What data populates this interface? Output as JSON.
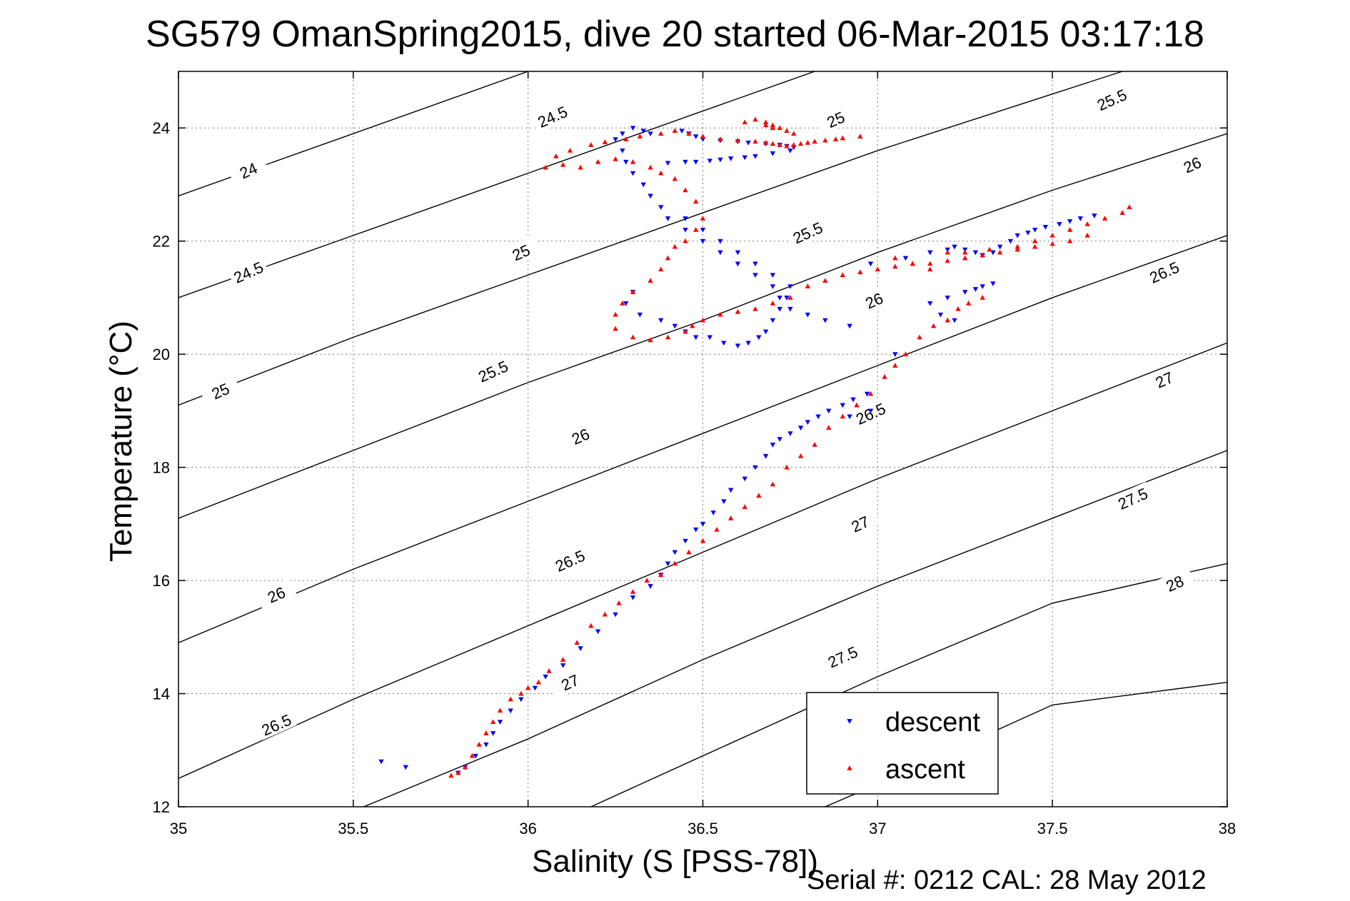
{
  "title": "SG579 OmanSpring2015, dive 20 started 06-Mar-2015 03:17:18",
  "footer": "Serial #: 0212  CAL: 28 May 2012",
  "chart_data": {
    "type": "scatter",
    "title": "SG579 OmanSpring2015, dive 20 started 06-Mar-2015 03:17:18",
    "xlabel": "Salinity (S [PSS-78])",
    "ylabel": "Temperature (°C)",
    "xlim": [
      35,
      38
    ],
    "ylim": [
      12,
      25
    ],
    "xticks": [
      35,
      35.5,
      36,
      36.5,
      37,
      37.5,
      38
    ],
    "xtick_labels": [
      "35",
      "35.5",
      "36",
      "36.5",
      "37",
      "37.5",
      "38"
    ],
    "yticks": [
      12,
      14,
      16,
      18,
      20,
      22,
      24
    ],
    "ytick_labels": [
      "12",
      "14",
      "16",
      "18",
      "20",
      "22",
      "24"
    ],
    "grid": true,
    "legend": "bottom-right",
    "density_contours": {
      "levels": [
        24,
        24.5,
        25,
        25.5,
        26,
        26.5,
        27,
        27.5,
        28
      ],
      "level_labels": [
        "24",
        "24.5",
        "25",
        "25.5",
        "26",
        "26.5",
        "27",
        "27.5",
        "28"
      ],
      "lines": [
        {
          "level": "24",
          "points": [
            [
              35,
              22.8
            ],
            [
              35.5,
              23.9
            ],
            [
              36,
              25.0
            ]
          ]
        },
        {
          "level": "24.5",
          "points": [
            [
              35,
              21.0
            ],
            [
              35.5,
              22.1
            ],
            [
              36,
              23.2
            ],
            [
              36.5,
              24.3
            ],
            [
              36.82,
              25.0
            ]
          ]
        },
        {
          "level": "25",
          "points": [
            [
              35,
              19.1
            ],
            [
              35.5,
              20.3
            ],
            [
              36,
              21.4
            ],
            [
              36.5,
              22.5
            ],
            [
              37,
              23.6
            ],
            [
              37.5,
              24.6
            ],
            [
              37.7,
              25.0
            ]
          ]
        },
        {
          "level": "25.5",
          "points": [
            [
              35,
              17.1
            ],
            [
              35.5,
              18.3
            ],
            [
              36,
              19.5
            ],
            [
              36.5,
              20.6
            ],
            [
              37,
              21.8
            ],
            [
              37.5,
              22.9
            ],
            [
              38,
              23.9
            ]
          ]
        },
        {
          "level": "26",
          "points": [
            [
              35,
              14.9
            ],
            [
              35.5,
              16.2
            ],
            [
              36,
              17.4
            ],
            [
              36.5,
              18.6
            ],
            [
              37,
              19.8
            ],
            [
              37.5,
              21.0
            ],
            [
              38,
              22.1
            ]
          ]
        },
        {
          "level": "26.5",
          "points": [
            [
              35,
              12.5
            ],
            [
              35.5,
              13.9
            ],
            [
              36,
              15.2
            ],
            [
              36.5,
              16.5
            ],
            [
              37,
              17.8
            ],
            [
              37.5,
              19.0
            ],
            [
              38,
              20.2
            ]
          ]
        },
        {
          "level": "27",
          "points": [
            [
              35.53,
              12.0
            ],
            [
              36,
              13.2
            ],
            [
              36.5,
              14.6
            ],
            [
              37,
              15.9
            ],
            [
              37.5,
              17.1
            ],
            [
              38,
              18.3
            ]
          ]
        },
        {
          "level": "27.5",
          "points": [
            [
              36.18,
              12.0
            ],
            [
              36.5,
              12.9
            ],
            [
              37,
              14.3
            ],
            [
              37.5,
              15.6
            ],
            [
              38,
              16.3
            ]
          ]
        },
        {
          "level": "28",
          "points": [
            [
              36.85,
              12.0
            ],
            [
              37,
              12.4
            ],
            [
              37.5,
              13.8
            ],
            [
              38,
              14.2
            ]
          ]
        }
      ],
      "labels": [
        {
          "text": "24",
          "x": 35.2,
          "y": 23.25
        },
        {
          "text": "24.5",
          "x": 36.07,
          "y": 24.2
        },
        {
          "text": "25",
          "x": 36.88,
          "y": 24.15
        },
        {
          "text": "25.5",
          "x": 37.67,
          "y": 24.5
        },
        {
          "text": "24.5",
          "x": 35.2,
          "y": 21.45
        },
        {
          "text": "25",
          "x": 35.98,
          "y": 21.8
        },
        {
          "text": "25.5",
          "x": 36.8,
          "y": 22.15
        },
        {
          "text": "26",
          "x": 37.9,
          "y": 23.35
        },
        {
          "text": "25",
          "x": 35.12,
          "y": 19.35
        },
        {
          "text": "25.5",
          "x": 35.9,
          "y": 19.7
        },
        {
          "text": "26",
          "x": 36.99,
          "y": 20.95
        },
        {
          "text": "26.5",
          "x": 37.82,
          "y": 21.45
        },
        {
          "text": "26",
          "x": 36.15,
          "y": 18.55
        },
        {
          "text": "26.5",
          "x": 36.98,
          "y": 18.95
        },
        {
          "text": "27",
          "x": 37.82,
          "y": 19.55
        },
        {
          "text": "26",
          "x": 35.28,
          "y": 15.75
        },
        {
          "text": "26.5",
          "x": 36.12,
          "y": 16.35
        },
        {
          "text": "27",
          "x": 36.95,
          "y": 17.0
        },
        {
          "text": "27.5",
          "x": 37.73,
          "y": 17.45
        },
        {
          "text": "26.5",
          "x": 35.28,
          "y": 13.45
        },
        {
          "text": "27",
          "x": 36.12,
          "y": 14.2
        },
        {
          "text": "27.5",
          "x": 36.9,
          "y": 14.65
        },
        {
          "text": "28",
          "x": 37.85,
          "y": 15.95
        }
      ]
    },
    "series": [
      {
        "name": "descent",
        "color": "#0000ff",
        "marker": "triangle-down",
        "x": [
          35.8,
          35.82,
          35.85,
          35.88,
          35.9,
          35.92,
          35.95,
          35.98,
          36.02,
          36.05,
          36.1,
          36.15,
          36.2,
          36.25,
          36.3,
          36.35,
          36.38,
          36.4,
          36.42,
          36.45,
          36.48,
          36.5,
          36.53,
          36.56,
          36.58,
          36.62,
          36.65,
          36.68,
          36.7,
          36.72,
          36.75,
          36.78,
          36.8,
          36.83,
          36.86,
          36.9,
          36.93,
          36.97,
          36.92,
          36.85,
          36.8,
          36.75,
          36.72,
          36.7,
          36.65,
          36.6,
          36.55,
          36.5,
          36.45,
          36.4,
          36.38,
          36.35,
          36.33,
          36.3,
          36.28,
          36.27,
          36.25,
          36.27,
          36.3,
          36.33,
          36.35,
          36.3,
          36.28,
          36.32,
          36.38,
          36.42,
          36.45,
          36.48,
          36.52,
          36.56,
          36.6,
          36.63,
          36.66,
          36.68,
          36.7,
          36.72,
          36.74,
          36.75,
          36.7,
          36.65,
          36.6,
          36.55,
          36.5,
          36.45,
          36.44,
          36.46,
          36.48,
          36.5,
          36.55,
          36.6,
          36.63,
          36.68,
          36.72,
          36.74,
          36.76,
          36.75,
          36.7,
          36.65,
          36.62,
          36.58,
          36.55,
          36.52,
          36.48,
          36.45,
          36.4,
          35.58,
          35.65,
          36.98,
          37.08,
          37.15,
          37.2,
          37.22,
          37.25,
          37.28,
          37.3,
          37.33,
          37.35,
          37.38,
          37.4,
          37.43,
          37.45,
          37.48,
          37.52,
          37.55,
          37.58,
          37.62,
          37.22,
          37.18,
          37.15,
          37.2,
          37.25,
          37.28,
          37.3,
          37.33,
          37.05,
          36.98,
          36.92
        ],
        "y": [
          12.6,
          12.7,
          12.9,
          13.1,
          13.3,
          13.5,
          13.7,
          13.9,
          14.1,
          14.3,
          14.5,
          14.8,
          15.1,
          15.4,
          15.7,
          15.9,
          16.1,
          16.3,
          16.5,
          16.7,
          16.9,
          17.0,
          17.2,
          17.4,
          17.6,
          17.8,
          18.0,
          18.2,
          18.4,
          18.5,
          18.6,
          18.7,
          18.8,
          18.9,
          19.0,
          19.1,
          19.2,
          19.3,
          20.5,
          20.6,
          20.7,
          20.8,
          21.0,
          21.2,
          21.4,
          21.6,
          21.8,
          22.0,
          22.2,
          22.4,
          22.6,
          22.8,
          23.0,
          23.2,
          23.4,
          23.6,
          23.8,
          23.9,
          24.0,
          23.95,
          23.9,
          21.1,
          20.9,
          20.7,
          20.6,
          20.5,
          20.4,
          20.3,
          20.3,
          20.2,
          20.15,
          20.2,
          20.3,
          20.4,
          20.6,
          20.8,
          21.0,
          21.2,
          21.4,
          21.6,
          21.8,
          22.0,
          22.2,
          22.4,
          23.95,
          23.9,
          23.85,
          23.8,
          23.78,
          23.76,
          23.74,
          23.72,
          23.7,
          23.68,
          23.66,
          23.6,
          23.55,
          23.5,
          23.48,
          23.46,
          23.44,
          23.42,
          23.4,
          23.4,
          23.38,
          12.8,
          12.7,
          21.6,
          21.7,
          21.8,
          21.85,
          21.9,
          21.85,
          21.8,
          21.75,
          21.8,
          21.9,
          22.0,
          22.1,
          22.15,
          22.2,
          22.25,
          22.3,
          22.35,
          22.4,
          22.45,
          20.6,
          20.7,
          20.9,
          21.0,
          21.1,
          21.15,
          21.2,
          21.25,
          20.0,
          19.0,
          18.9
        ]
      },
      {
        "name": "ascent",
        "color": "#ff0000",
        "marker": "triangle-up",
        "x": [
          35.78,
          35.8,
          35.82,
          35.84,
          35.86,
          35.88,
          35.9,
          35.92,
          35.95,
          35.98,
          36.0,
          36.03,
          36.06,
          36.1,
          36.14,
          36.18,
          36.22,
          36.26,
          36.3,
          36.34,
          36.38,
          36.42,
          36.46,
          36.5,
          36.54,
          36.58,
          36.62,
          36.66,
          36.7,
          36.74,
          36.78,
          36.82,
          36.86,
          36.9,
          36.94,
          36.98,
          37.02,
          37.05,
          37.08,
          37.12,
          37.16,
          37.2,
          37.23,
          37.26,
          37.3,
          37.15,
          37.1,
          37.05,
          37.2,
          37.25,
          37.32,
          37.4,
          37.45,
          37.5,
          37.55,
          37.6,
          37.65,
          37.7,
          37.72,
          37.6,
          37.55,
          37.5,
          37.45,
          37.4,
          37.35,
          37.3,
          37.25,
          37.2,
          37.15,
          37.1,
          37.05,
          37.0,
          36.95,
          36.9,
          36.85,
          36.8,
          36.75,
          36.7,
          36.65,
          36.6,
          36.55,
          36.5,
          36.47,
          36.45,
          36.4,
          36.35,
          36.3,
          36.25,
          36.25,
          36.27,
          36.3,
          36.35,
          36.38,
          36.4,
          36.42,
          36.45,
          36.48,
          36.5,
          36.48,
          36.45,
          36.42,
          36.38,
          36.35,
          36.3,
          36.25,
          36.2,
          36.15,
          36.1,
          36.05,
          36.08,
          36.12,
          36.18,
          36.22,
          36.28,
          36.32,
          36.38,
          36.42,
          36.46,
          36.5,
          36.55,
          36.6,
          36.65,
          36.68,
          36.7,
          36.72,
          36.74,
          36.76,
          36.78,
          36.8,
          36.82,
          36.85,
          36.88,
          36.9,
          36.95,
          36.62,
          36.65,
          36.68,
          36.7,
          36.72,
          36.74,
          36.76,
          36.68,
          36.7
        ],
        "y": [
          12.55,
          12.6,
          12.7,
          12.9,
          13.1,
          13.3,
          13.5,
          13.7,
          13.9,
          14.0,
          14.1,
          14.2,
          14.4,
          14.6,
          14.9,
          15.2,
          15.4,
          15.6,
          15.8,
          16.0,
          16.1,
          16.3,
          16.5,
          16.7,
          16.9,
          17.1,
          17.3,
          17.5,
          17.7,
          18.0,
          18.2,
          18.4,
          18.7,
          18.9,
          19.1,
          19.3,
          19.6,
          19.8,
          20.0,
          20.3,
          20.5,
          20.6,
          20.8,
          20.9,
          21.0,
          21.5,
          21.6,
          21.7,
          21.8,
          21.8,
          21.85,
          21.9,
          22.0,
          22.1,
          22.2,
          22.3,
          22.4,
          22.5,
          22.6,
          22.1,
          22.0,
          21.95,
          21.9,
          21.85,
          21.8,
          21.75,
          21.7,
          21.65,
          21.6,
          21.6,
          21.55,
          21.5,
          21.45,
          21.4,
          21.3,
          21.2,
          21.0,
          20.9,
          20.8,
          20.75,
          20.7,
          20.6,
          20.5,
          20.4,
          20.3,
          20.25,
          20.3,
          20.45,
          20.7,
          20.9,
          21.1,
          21.3,
          21.5,
          21.7,
          21.9,
          22.0,
          22.2,
          22.4,
          22.7,
          22.9,
          23.1,
          23.2,
          23.3,
          23.4,
          23.45,
          23.4,
          23.3,
          23.35,
          23.3,
          23.5,
          23.6,
          23.7,
          23.75,
          23.8,
          23.85,
          23.9,
          23.95,
          23.9,
          23.85,
          23.8,
          23.78,
          23.76,
          23.74,
          23.72,
          23.7,
          23.68,
          23.7,
          23.72,
          23.74,
          23.76,
          23.78,
          23.8,
          23.82,
          23.85,
          24.1,
          24.15,
          24.1,
          24.05,
          24.0,
          23.95,
          23.9,
          24.05,
          24.0
        ]
      }
    ]
  }
}
